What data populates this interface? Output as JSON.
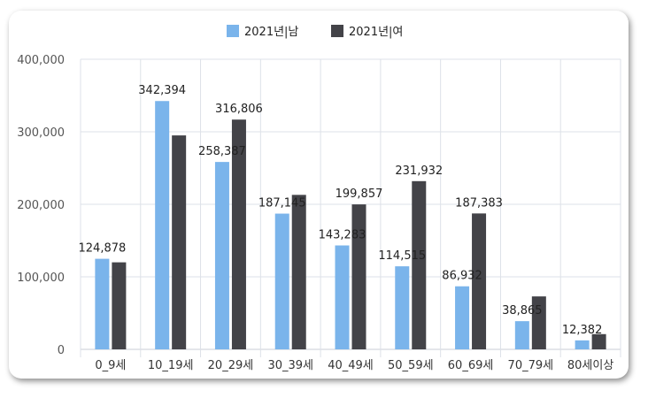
{
  "chart_data": {
    "type": "bar",
    "categories": [
      "0_9세",
      "10_19세",
      "20_29세",
      "30_39세",
      "40_49세",
      "50_59세",
      "60_69세",
      "70_79세",
      "80세이상"
    ],
    "series": [
      {
        "name": "2021년|남",
        "color": "#7ab4eb",
        "values": [
          124878,
          342394,
          258387,
          187145,
          143283,
          114515,
          86932,
          38865,
          12382
        ]
      },
      {
        "name": "2021년|여",
        "color": "#434348",
        "values": [
          120000,
          295000,
          316806,
          213000,
          199857,
          231932,
          187383,
          73000,
          21000
        ]
      }
    ],
    "data_labels": [
      {
        "category": "0_9세",
        "text": "124,878"
      },
      {
        "category": "10_19세",
        "text": "342,394"
      },
      {
        "category": "20_29세",
        "text": "258,387"
      },
      {
        "category": "20_29세",
        "text": "316,806"
      },
      {
        "category": "30_39세",
        "text": "187,145"
      },
      {
        "category": "40_49세",
        "text": "143,283"
      },
      {
        "category": "40_49세",
        "text": "199,857"
      },
      {
        "category": "50_59세",
        "text": "114,515"
      },
      {
        "category": "50_59세",
        "text": "231,932"
      },
      {
        "category": "60_69세",
        "text": "86,932"
      },
      {
        "category": "60_69세",
        "text": "187,383"
      },
      {
        "category": "70_79세",
        "text": "38,865"
      },
      {
        "category": "80세이상",
        "text": "12,382"
      }
    ],
    "y_ticks": [
      "0",
      "100,000",
      "200,000",
      "300,000",
      "400,000"
    ],
    "ylim": [
      0,
      400000
    ],
    "grid": true,
    "legend_position": "top-center"
  }
}
